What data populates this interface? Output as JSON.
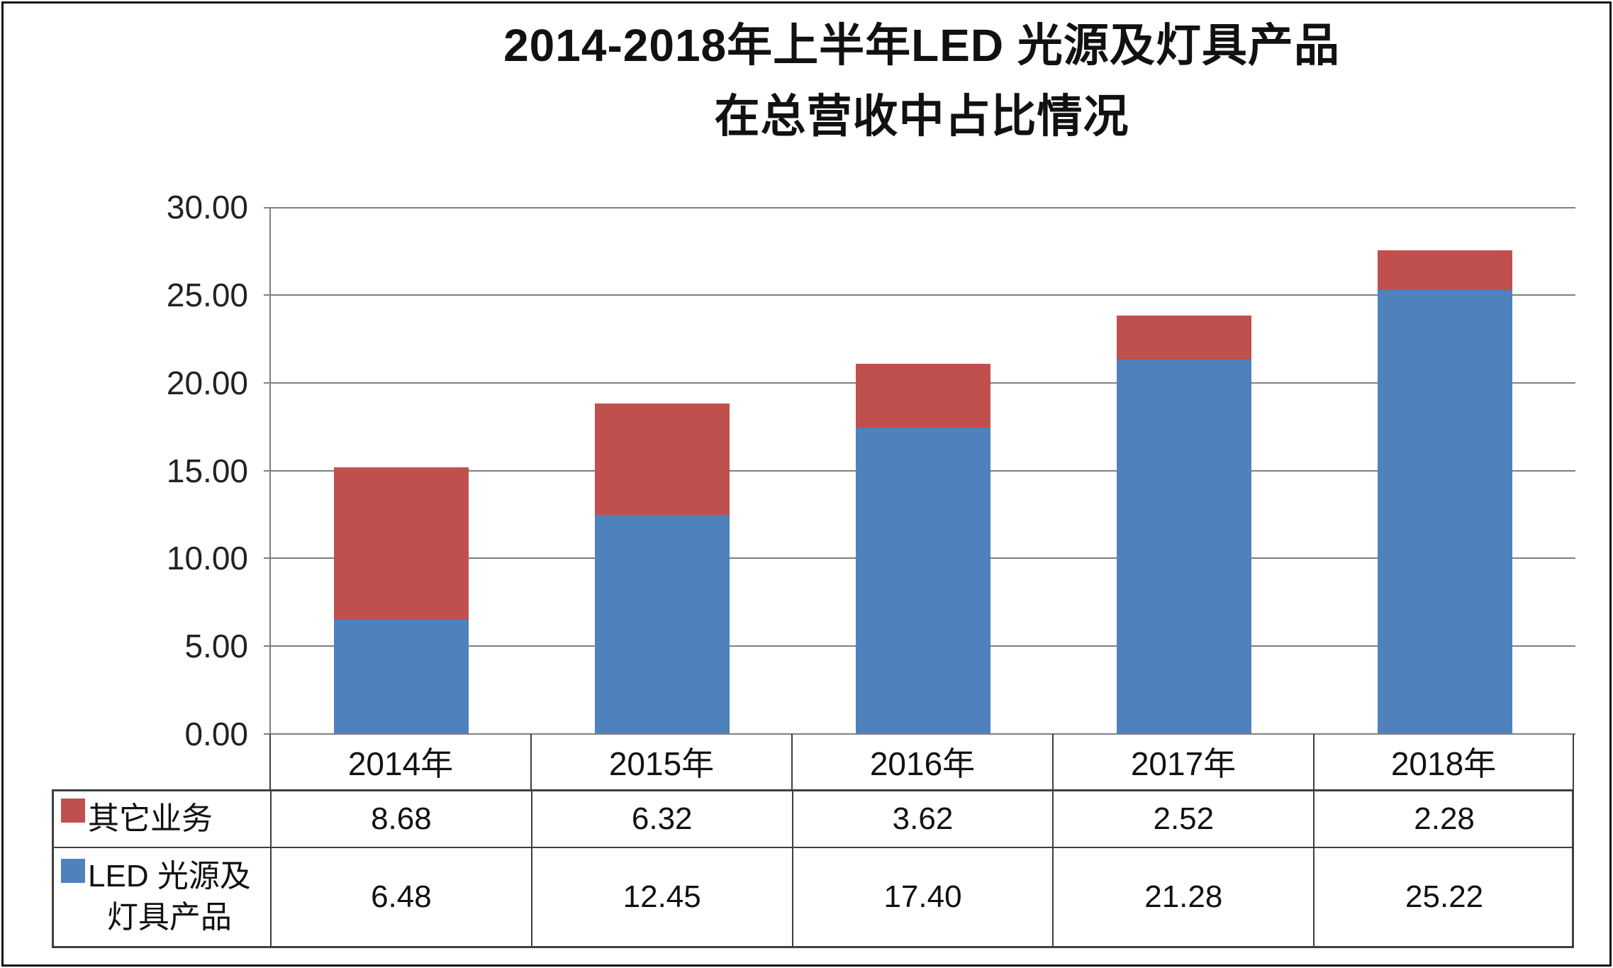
{
  "title": {
    "line1": "2014-2018年上半年LED 光源及灯具产品",
    "line2": "在总营收中占比情况"
  },
  "chart_data": {
    "type": "bar",
    "stacked": true,
    "title": "2014-2018年上半年LED 光源及灯具产品在总营收中占比情况",
    "categories": [
      "2014年",
      "2015年",
      "2016年",
      "2017年",
      "2018年"
    ],
    "series": [
      {
        "name": "其它业务",
        "name_lines": [
          "其它业务"
        ],
        "color": "#C0504D",
        "values": [
          8.68,
          6.32,
          3.62,
          2.52,
          2.28
        ]
      },
      {
        "name": "LED 光源及灯具产品",
        "name_lines": [
          "LED 光源及",
          "灯具产品"
        ],
        "color": "#4F81BD",
        "values": [
          6.48,
          12.45,
          17.4,
          21.28,
          25.22
        ]
      }
    ],
    "stack_order_bottom_to_top": [
      1,
      0
    ],
    "y_ticks": [
      "0.00",
      "5.00",
      "10.00",
      "15.00",
      "20.00",
      "25.00",
      "30.00"
    ],
    "ylim": [
      0,
      30
    ],
    "grid": "horizontal",
    "legend_position": "table-rows-left",
    "value_format": "2-decimals",
    "colors": {
      "gridline": "#7f7f7f",
      "table_border": "#3f3f3f",
      "text": "#111111"
    }
  }
}
